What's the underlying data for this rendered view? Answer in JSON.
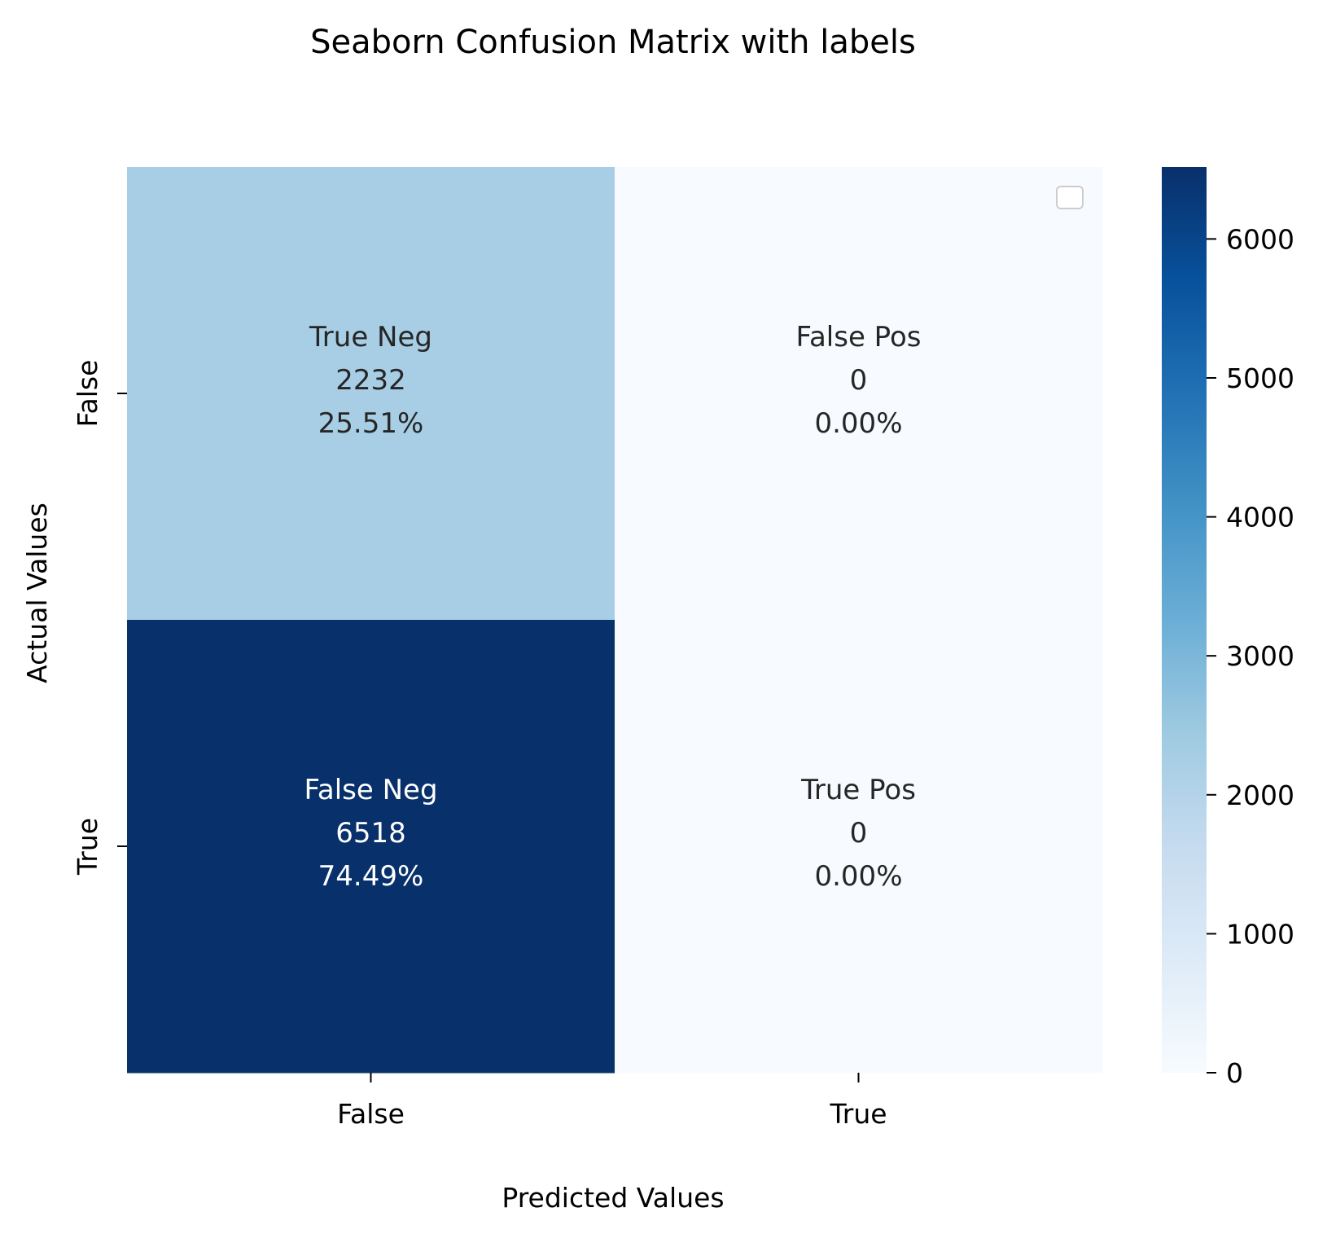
{
  "chart_data": {
    "type": "heatmap",
    "title": "Seaborn Confusion Matrix with labels",
    "xlabel": "Predicted Values",
    "ylabel": "Actual Values",
    "x_categories": [
      "False",
      "True"
    ],
    "y_categories": [
      "False",
      "True"
    ],
    "values": [
      [
        2232,
        0
      ],
      [
        6518,
        0
      ]
    ],
    "cell_labels": [
      [
        "True Neg",
        "False Pos"
      ],
      [
        "False Neg",
        "True Pos"
      ]
    ],
    "cell_percents": [
      [
        "25.51%",
        "0.00%"
      ],
      [
        "74.49%",
        "0.00%"
      ]
    ],
    "colormap": "Blues",
    "colorbar": {
      "range": [
        0,
        6518
      ],
      "ticks": [
        0,
        1000,
        2000,
        3000,
        4000,
        5000,
        6000
      ]
    },
    "legend": "top-right",
    "grid": false
  }
}
